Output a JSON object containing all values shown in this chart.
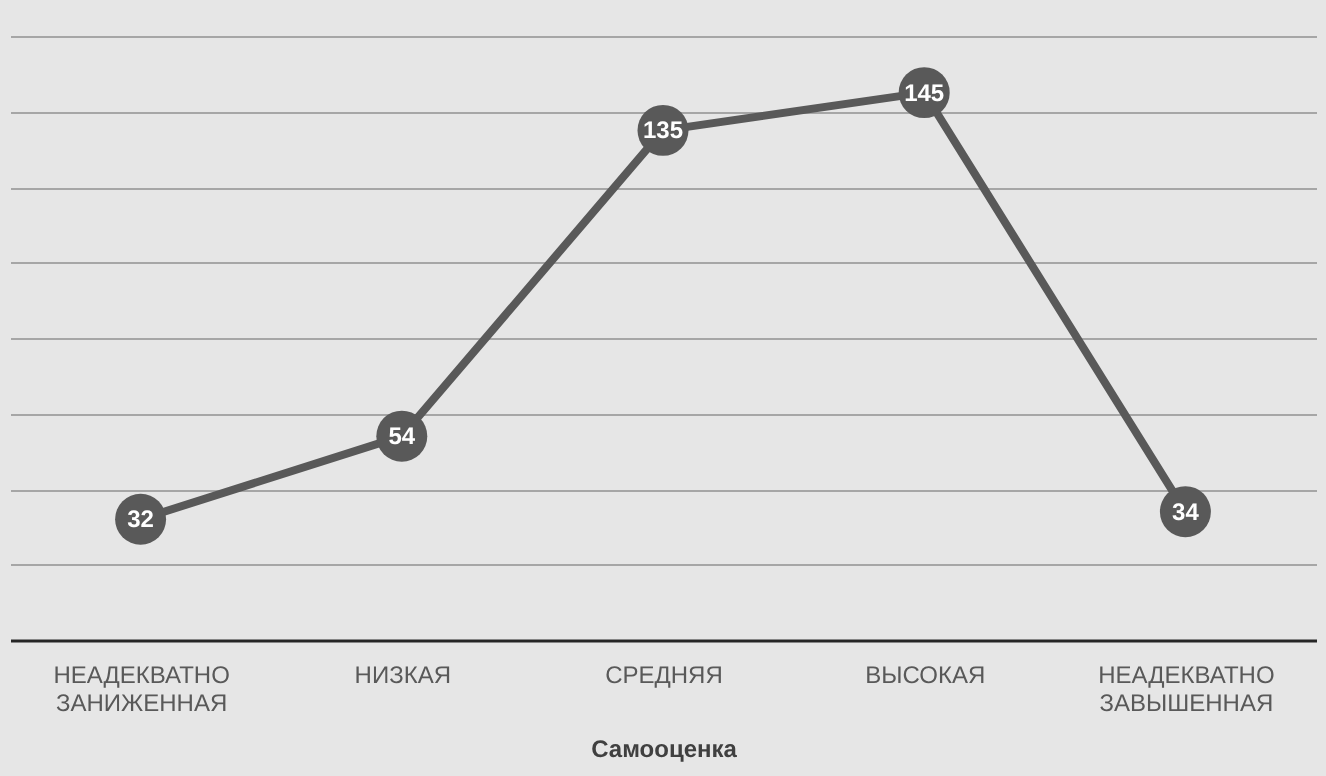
{
  "chart_data": {
    "type": "line",
    "xlabel": "Самооценка",
    "categories": [
      "НЕАДЕКВАТНО ЗАНИЖЕННАЯ",
      "НИЗКАЯ",
      "СРЕДНЯЯ",
      "ВЫСОКАЯ",
      "НЕАДЕКВАТНО ЗАВЫШЕННАЯ"
    ],
    "values": [
      32,
      54,
      135,
      145,
      34
    ],
    "color": "#595959",
    "ylim": [
      0,
      160
    ],
    "yticks": [
      {
        "value": 0,
        "label": null
      },
      {
        "value": 20,
        "label": null
      },
      {
        "value": 40,
        "label": null
      },
      {
        "value": 60,
        "label": null
      },
      {
        "value": 80,
        "label": null
      },
      {
        "value": 100,
        "label": null
      },
      {
        "value": 120,
        "label": null
      },
      {
        "value": 140,
        "label": null
      },
      {
        "value": 160,
        "label": null
      }
    ],
    "grid": "y",
    "tick_labels": "x",
    "marker": "circle",
    "line_style": "solid",
    "data_labels": true
  }
}
